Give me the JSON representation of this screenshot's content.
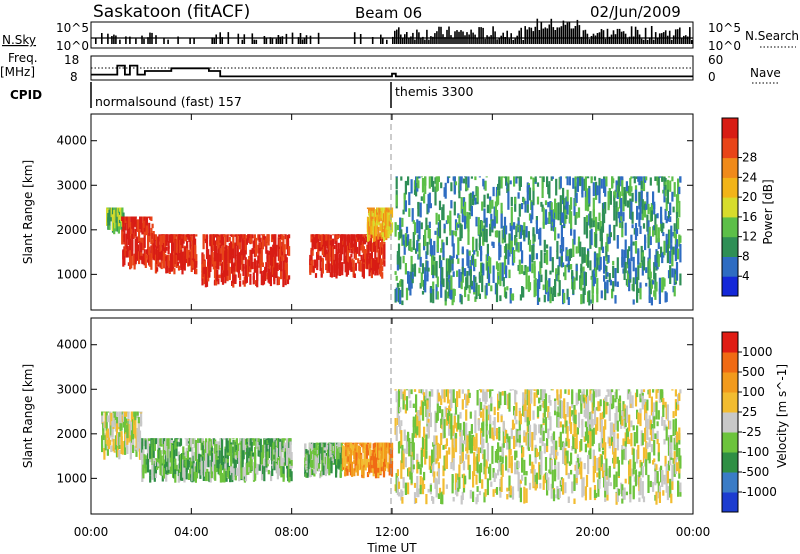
{
  "header": {
    "station": "Saskatoon (fitACF)",
    "beam": "Beam 06",
    "date": "02/Jun/2009"
  },
  "side_labels": {
    "nsky": "N.Sky",
    "nsearch": "N.Search",
    "freq": "Freq.",
    "mhz": "[MHz]",
    "nave": "Nave",
    "cpid": "CPID"
  },
  "noise_panel": {
    "left_ticks": [
      "10^5",
      "10^0"
    ],
    "right_ticks": [
      "10^5",
      "10^0"
    ]
  },
  "freq_panel": {
    "left_ticks": [
      "18",
      "8"
    ],
    "right_ticks": [
      "60",
      "0"
    ],
    "freq_steps": [
      {
        "t": 0.0,
        "f": 11
      },
      {
        "t": 1.05,
        "f": 16
      },
      {
        "t": 1.35,
        "f": 11
      },
      {
        "t": 1.55,
        "f": 16
      },
      {
        "t": 1.85,
        "f": 11
      },
      {
        "t": 2.15,
        "f": 13
      },
      {
        "t": 3.2,
        "f": 14.5
      },
      {
        "t": 4.7,
        "f": 13
      },
      {
        "t": 5.15,
        "f": 10
      },
      {
        "t": 12.0,
        "f": 11.5
      },
      {
        "t": 12.15,
        "f": 10
      },
      {
        "t": 24.0,
        "f": 10
      }
    ]
  },
  "cpid_segments": [
    {
      "label": "normalsound (fast) 157",
      "start": 0
    },
    {
      "label": "themis 3300",
      "start": 12
    }
  ],
  "chart_data": [
    {
      "type": "heatmap",
      "name": "power-panel",
      "xlabel": "",
      "ylabel": "Slant Range [km]",
      "xlim": [
        0,
        24
      ],
      "ylim": [
        200,
        4600
      ],
      "yticks": [
        1000,
        2000,
        3000,
        4000
      ],
      "colorbar": {
        "label": "Power [dB]",
        "ticks": [
          "4",
          "8",
          "12",
          "16",
          "20",
          "24",
          "28"
        ],
        "colors": [
          "#1428d8",
          "#2e6cc2",
          "#2f8f56",
          "#5cbf48",
          "#d7dc2c",
          "#f2b418",
          "#f08a1a",
          "#e84418",
          "#d81c14"
        ]
      },
      "regions": [
        {
          "t0": 0.6,
          "t1": 1.3,
          "r0": 1900,
          "r1": 2500,
          "level": 3
        },
        {
          "t0": 1.2,
          "t1": 2.5,
          "r0": 1100,
          "r1": 2300,
          "level": 8
        },
        {
          "t0": 2.5,
          "t1": 4.2,
          "r0": 1000,
          "r1": 1900,
          "level": 8
        },
        {
          "t0": 4.4,
          "t1": 7.9,
          "r0": 700,
          "r1": 1900,
          "level": 8
        },
        {
          "t0": 8.7,
          "t1": 11.7,
          "r0": 900,
          "r1": 1900,
          "level": 8
        },
        {
          "t0": 11.0,
          "t1": 12.0,
          "r0": 1700,
          "r1": 2500,
          "level": 5
        },
        {
          "t0": 12.1,
          "t1": 23.5,
          "r0": 300,
          "r1": 3200,
          "level": 2
        }
      ]
    },
    {
      "type": "heatmap",
      "name": "velocity-panel",
      "xlabel": "Time UT",
      "ylabel": "Slant Range [km]",
      "xlim": [
        0,
        24
      ],
      "ylim": [
        200,
        4600
      ],
      "yticks": [
        1000,
        2000,
        3000,
        4000
      ],
      "xticks": [
        "00:00",
        "04:00",
        "08:00",
        "12:00",
        "16:00",
        "20:00",
        "00:00"
      ],
      "colorbar": {
        "label": "Velocity [m s^-1]",
        "ticks": [
          "1000",
          "500",
          "100",
          "25",
          "-25",
          "-100",
          "-500",
          "-1000"
        ],
        "colors": [
          "#1c3cd0",
          "#3a7cc6",
          "#2f8f44",
          "#6cc33c",
          "#c8c8c8",
          "#f2bc30",
          "#f29a1c",
          "#f06a14",
          "#e01c14"
        ]
      },
      "regions": [
        {
          "t0": 0.4,
          "t1": 2.0,
          "r0": 1400,
          "r1": 2500,
          "level": 4
        },
        {
          "t0": 2.0,
          "t1": 8.0,
          "r0": 900,
          "r1": 1900,
          "level": 3
        },
        {
          "t0": 8.5,
          "t1": 10.0,
          "r0": 1000,
          "r1": 1800,
          "level": 3
        },
        {
          "t0": 10.0,
          "t1": 12.0,
          "r0": 1000,
          "r1": 1800,
          "level": 6
        },
        {
          "t0": 12.1,
          "t1": 23.5,
          "r0": 400,
          "r1": 3000,
          "level": 4
        }
      ]
    }
  ],
  "colors": {
    "frame": "#000000",
    "grid": "#888888"
  }
}
